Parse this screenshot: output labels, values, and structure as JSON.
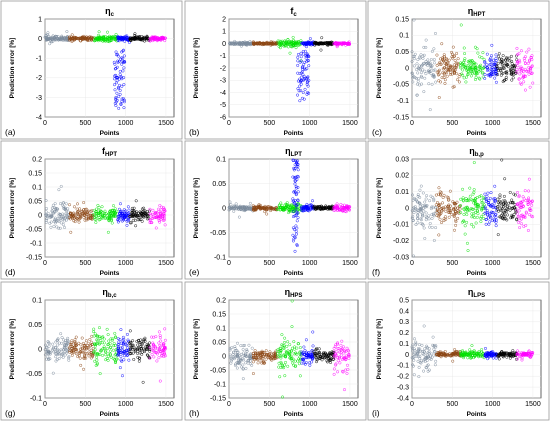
{
  "figure": {
    "chart_data": [
      {
        "id": "a",
        "type": "scatter",
        "panel_label": "(a)",
        "title_main": "η",
        "title_sub": "c",
        "xlabel": "Points",
        "ylabel": "Prediction error [%]",
        "xlim": [
          0,
          1600
        ],
        "ylim": [
          -4,
          1
        ],
        "xticks": [
          0,
          500,
          1000,
          1500
        ],
        "yticks": [
          -4,
          -3,
          -2,
          -1,
          0,
          1
        ],
        "series": [
          {
            "color": "#7a8a9c",
            "x_range": [
              0,
              299
            ],
            "spread": 0.06
          },
          {
            "color": "#8b4513",
            "x_range": [
              300,
              599
            ],
            "spread": 0.05
          },
          {
            "color": "#00e000",
            "x_range": [
              600,
              899
            ],
            "spread": 0.07
          },
          {
            "color": "#0000ff",
            "x_range": [
              900,
              1049
            ],
            "spread": 0.05
          },
          {
            "color": "#000000",
            "x_range": [
              1050,
              1299
            ],
            "spread": 0.05
          },
          {
            "color": "#ff00ff",
            "x_range": [
              1300,
              1499
            ],
            "spread": 0.05
          }
        ],
        "outlier_cluster": {
          "x_range": [
            850,
            990
          ],
          "y_range": [
            -3.7,
            -0.4
          ],
          "color": "#0000ff"
        }
      },
      {
        "id": "b",
        "type": "scatter",
        "panel_label": "(b)",
        "title_main": "f",
        "title_sub": "c",
        "xlabel": "Points",
        "ylabel": "Prediction error [%]",
        "xlim": [
          0,
          1600
        ],
        "ylim": [
          -6,
          2
        ],
        "xticks": [
          0,
          500,
          1000,
          1500
        ],
        "yticks": [
          -6,
          -5,
          -4,
          -3,
          -2,
          -1,
          0,
          1,
          2
        ],
        "series": [
          {
            "color": "#7a8a9c",
            "x_range": [
              0,
              299
            ],
            "spread": 0.05
          },
          {
            "color": "#8b4513",
            "x_range": [
              300,
              599
            ],
            "spread": 0.05
          },
          {
            "color": "#00e000",
            "x_range": [
              600,
              899
            ],
            "spread": 0.15
          },
          {
            "color": "#0000ff",
            "x_range": [
              900,
              1049
            ],
            "spread": 0.06
          },
          {
            "color": "#000000",
            "x_range": [
              1050,
              1299
            ],
            "spread": 0.05
          },
          {
            "color": "#ff00ff",
            "x_range": [
              1300,
              1499
            ],
            "spread": 0.05
          }
        ],
        "outlier_cluster": {
          "x_range": [
            850,
            990
          ],
          "y_range": [
            -4.8,
            -0.6
          ],
          "color": "#0000ff"
        }
      },
      {
        "id": "c",
        "type": "scatter",
        "panel_label": "(c)",
        "title_main": "η",
        "title_sub": "HPT",
        "xlabel": "Points",
        "ylabel": "Prediction error [%]",
        "xlim": [
          0,
          1600
        ],
        "ylim": [
          -0.15,
          0.15
        ],
        "xticks": [
          0,
          500,
          1000,
          1500
        ],
        "yticks": [
          -0.15,
          -0.1,
          -0.05,
          0,
          0.05,
          0.1,
          0.15
        ],
        "series": [
          {
            "color": "#7a8a9c",
            "x_range": [
              0,
              299
            ],
            "spread": 0.03
          },
          {
            "color": "#8b4513",
            "x_range": [
              300,
              599
            ],
            "spread": 0.025
          },
          {
            "color": "#00e000",
            "x_range": [
              600,
              899
            ],
            "spread": 0.02
          },
          {
            "color": "#0000ff",
            "x_range": [
              900,
              1049
            ],
            "spread": 0.02
          },
          {
            "color": "#000000",
            "x_range": [
              1050,
              1299
            ],
            "spread": 0.02
          },
          {
            "color": "#ff00ff",
            "x_range": [
              1300,
              1499
            ],
            "spread": 0.025
          }
        ]
      },
      {
        "id": "d",
        "type": "scatter",
        "panel_label": "(d)",
        "title_main": "f",
        "title_sub": "HPT",
        "xlabel": "Points",
        "ylabel": "Prediction error [%]",
        "xlim": [
          0,
          1600
        ],
        "ylim": [
          -0.15,
          0.2
        ],
        "xticks": [
          0,
          500,
          1000,
          1500
        ],
        "yticks": [
          -0.15,
          -0.1,
          -0.05,
          0,
          0.05,
          0.1,
          0.15,
          0.2
        ],
        "series": [
          {
            "color": "#7a8a9c",
            "x_range": [
              0,
              299
            ],
            "spread": 0.02
          },
          {
            "color": "#8b4513",
            "x_range": [
              300,
              599
            ],
            "spread": 0.012
          },
          {
            "color": "#00e000",
            "x_range": [
              600,
              899
            ],
            "spread": 0.012
          },
          {
            "color": "#0000ff",
            "x_range": [
              900,
              1049
            ],
            "spread": 0.012
          },
          {
            "color": "#000000",
            "x_range": [
              1050,
              1299
            ],
            "spread": 0.012
          },
          {
            "color": "#ff00ff",
            "x_range": [
              1300,
              1499
            ],
            "spread": 0.015
          }
        ]
      },
      {
        "id": "e",
        "type": "scatter",
        "panel_label": "(e)",
        "title_main": "η",
        "title_sub": "LPT",
        "xlabel": "Points",
        "ylabel": "Prediction error [%]",
        "xlim": [
          0,
          1600
        ],
        "ylim": [
          -0.1,
          0.1
        ],
        "xticks": [
          0,
          500,
          1000,
          1500
        ],
        "yticks": [
          -0.1,
          -0.05,
          0,
          0.05,
          0.1
        ],
        "series": [
          {
            "color": "#7a8a9c",
            "x_range": [
              0,
              299
            ],
            "spread": 0.002
          },
          {
            "color": "#8b4513",
            "x_range": [
              300,
              599
            ],
            "spread": 0.002
          },
          {
            "color": "#00e000",
            "x_range": [
              600,
              899
            ],
            "spread": 0.004
          },
          {
            "color": "#0000ff",
            "x_range": [
              900,
              1049
            ],
            "spread": 0.003
          },
          {
            "color": "#000000",
            "x_range": [
              1050,
              1299
            ],
            "spread": 0.002
          },
          {
            "color": "#ff00ff",
            "x_range": [
              1300,
              1499
            ],
            "spread": 0.003
          }
        ],
        "outlier_cluster": {
          "x_range": [
            790,
            860
          ],
          "y_range": [
            -0.09,
            0.1
          ],
          "color": "#0000ff"
        }
      },
      {
        "id": "f",
        "type": "scatter",
        "panel_label": "(f)",
        "title_main": "η",
        "title_sub": "b,p",
        "xlabel": "Points",
        "ylabel": "Prediction error [%]",
        "xlim": [
          0,
          1600
        ],
        "ylim": [
          -0.03,
          0.03
        ],
        "xticks": [
          0,
          500,
          1000,
          1500
        ],
        "yticks": [
          -0.03,
          -0.02,
          -0.01,
          0,
          0.01,
          0.02,
          0.03
        ],
        "series": [
          {
            "color": "#7a8a9c",
            "x_range": [
              0,
              299
            ],
            "spread": 0.005
          },
          {
            "color": "#8b4513",
            "x_range": [
              300,
              599
            ],
            "spread": 0.005
          },
          {
            "color": "#00e000",
            "x_range": [
              600,
              899
            ],
            "spread": 0.006
          },
          {
            "color": "#0000ff",
            "x_range": [
              900,
              1049
            ],
            "spread": 0.005
          },
          {
            "color": "#000000",
            "x_range": [
              1050,
              1299
            ],
            "spread": 0.005
          },
          {
            "color": "#ff00ff",
            "x_range": [
              1300,
              1499
            ],
            "spread": 0.005
          }
        ]
      },
      {
        "id": "g",
        "type": "scatter",
        "panel_label": "(g)",
        "title_main": "η",
        "title_sub": "b,c",
        "xlabel": "Points",
        "ylabel": "Prediction error [%]",
        "xlim": [
          0,
          1600
        ],
        "ylim": [
          -0.1,
          0.1
        ],
        "xticks": [
          0,
          500,
          1000,
          1500
        ],
        "yticks": [
          -0.1,
          -0.05,
          0,
          0.05,
          0.1
        ],
        "series": [
          {
            "color": "#7a8a9c",
            "x_range": [
              0,
              299
            ],
            "spread": 0.012
          },
          {
            "color": "#8b4513",
            "x_range": [
              300,
              599
            ],
            "spread": 0.01
          },
          {
            "color": "#00e000",
            "x_range": [
              600,
              899
            ],
            "spread": 0.018
          },
          {
            "color": "#0000ff",
            "x_range": [
              900,
              1049
            ],
            "spread": 0.012
          },
          {
            "color": "#000000",
            "x_range": [
              1050,
              1299
            ],
            "spread": 0.01
          },
          {
            "color": "#ff00ff",
            "x_range": [
              1300,
              1499
            ],
            "spread": 0.012
          }
        ]
      },
      {
        "id": "h",
        "type": "scatter",
        "panel_label": "(h)",
        "title_main": "η",
        "title_sub": "HPS",
        "xlabel": "Points",
        "ylabel": "Prediction error [%]",
        "xlim": [
          0,
          1600
        ],
        "ylim": [
          -0.15,
          0.2
        ],
        "xticks": [
          0,
          500,
          1000,
          1500
        ],
        "yticks": [
          -0.15,
          -0.1,
          -0.05,
          0,
          0.05,
          0.1,
          0.15,
          0.2
        ],
        "series": [
          {
            "color": "#7a8a9c",
            "x_range": [
              0,
              299
            ],
            "spread": 0.02
          },
          {
            "color": "#8b4513",
            "x_range": [
              300,
              599
            ],
            "spread": 0.012
          },
          {
            "color": "#00e000",
            "x_range": [
              600,
              899
            ],
            "spread": 0.03
          },
          {
            "color": "#0000ff",
            "x_range": [
              900,
              1049
            ],
            "spread": 0.015
          },
          {
            "color": "#000000",
            "x_range": [
              1050,
              1299
            ],
            "spread": 0.012
          },
          {
            "color": "#ff00ff",
            "x_range": [
              1300,
              1499
            ],
            "spread": 0.025
          }
        ]
      },
      {
        "id": "i",
        "type": "scatter",
        "panel_label": "(i)",
        "title_main": "η",
        "title_sub": "LPS",
        "xlabel": "Points",
        "ylabel": "Prediction error [%]",
        "xlim": [
          0,
          1600
        ],
        "ylim": [
          -0.4,
          0.5
        ],
        "xticks": [
          0,
          500,
          1000,
          1500
        ],
        "yticks": [
          -0.4,
          -0.3,
          -0.2,
          -0.1,
          0,
          0.1,
          0.2,
          0.3,
          0.4,
          0.5
        ],
        "series": [
          {
            "color": "#7a8a9c",
            "x_range": [
              0,
              299
            ],
            "spread": 0.06
          },
          {
            "color": "#8b4513",
            "x_range": [
              300,
              599
            ],
            "spread": 0.01
          },
          {
            "color": "#00e000",
            "x_range": [
              600,
              899
            ],
            "spread": 0.015
          },
          {
            "color": "#0000ff",
            "x_range": [
              900,
              1049
            ],
            "spread": 0.012
          },
          {
            "color": "#000000",
            "x_range": [
              1050,
              1299
            ],
            "spread": 0.012
          },
          {
            "color": "#ff00ff",
            "x_range": [
              1300,
              1499
            ],
            "spread": 0.012
          }
        ]
      }
    ]
  }
}
